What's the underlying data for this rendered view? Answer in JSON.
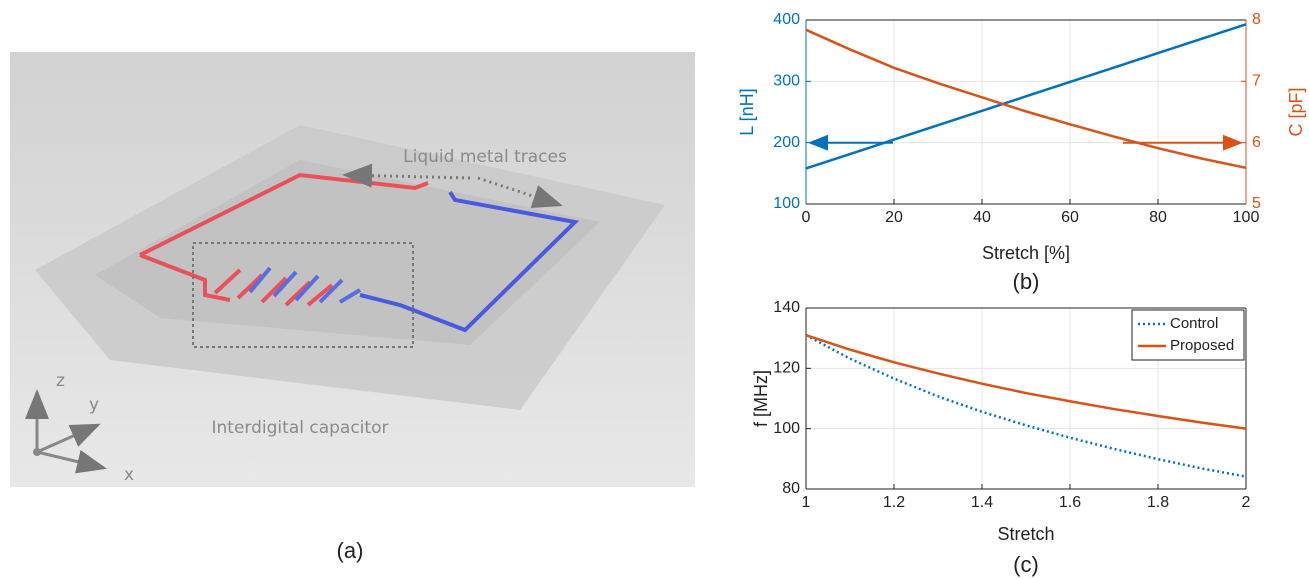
{
  "figure_a": {
    "traces_label": "Liquid metal traces",
    "capacitor_label": "Interdigital capacitor",
    "axis_z": "z",
    "axis_y": "y",
    "axis_x": "x",
    "caption": "(a)"
  },
  "chart_data": [
    {
      "type": "line",
      "caption": "(b)",
      "xlabel": "Stretch [%]",
      "ylabel": "L [nH]",
      "y2label": "C [pF]",
      "x": [
        0,
        10,
        20,
        30,
        40,
        50,
        60,
        70,
        80,
        90,
        100
      ],
      "series": [
        {
          "color": "#0072bd",
          "linestyle": "solid",
          "values": [
            158,
            181.5,
            205,
            228.5,
            252,
            275.5,
            299,
            322.5,
            346,
            369.5,
            393
          ]
        },
        {
          "color": "#d95319",
          "linestyle": "solid",
          "axis": "y2",
          "values": [
            7.84,
            7.52,
            7.22,
            6.97,
            6.74,
            6.51,
            6.3,
            6.1,
            5.91,
            5.74,
            5.59
          ]
        }
      ],
      "xlim": [
        0,
        100
      ],
      "xticks": [
        0,
        20,
        40,
        60,
        80,
        100
      ],
      "ylim": [
        100,
        400
      ],
      "yticks": [
        100,
        200,
        300,
        400
      ],
      "y2lim": [
        5,
        8
      ],
      "y2ticks": [
        5,
        6,
        7,
        8
      ],
      "grid": true
    },
    {
      "type": "line",
      "caption": "(c)",
      "xlabel": "Stretch",
      "ylabel": "f [MHz]",
      "x": [
        1,
        1.1,
        1.2,
        1.3,
        1.4,
        1.5,
        1.6,
        1.7,
        1.8,
        1.9,
        2
      ],
      "series": [
        {
          "name": "Control",
          "color": "#0072bd",
          "linestyle": "dotted",
          "values": [
            131,
            123.2,
            116.6,
            110.7,
            105.6,
            101.1,
            97.0,
            93.3,
            89.9,
            86.8,
            84.1
          ]
        },
        {
          "name": "Proposed",
          "color": "#d95319",
          "linestyle": "solid",
          "values": [
            131,
            126.2,
            122.0,
            118.3,
            114.9,
            111.8,
            109.1,
            106.5,
            104.2,
            102.0,
            100.0
          ]
        }
      ],
      "xlim": [
        1,
        2
      ],
      "xticks": [
        1,
        1.2,
        1.4,
        1.6,
        1.8,
        2
      ],
      "ylim": [
        80,
        140
      ],
      "yticks": [
        80,
        100,
        120,
        140
      ],
      "grid": true,
      "legend": "upper right"
    }
  ]
}
